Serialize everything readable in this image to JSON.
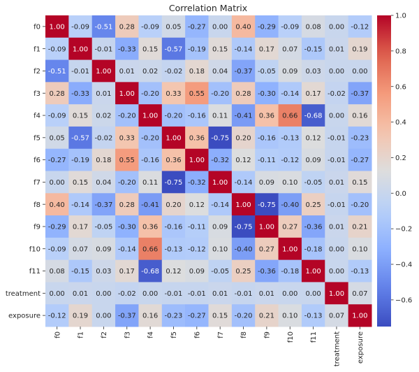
{
  "chart_data": {
    "type": "heatmap",
    "title": "Correlation Matrix",
    "xlabel": "",
    "ylabel": "",
    "labels": [
      "f0",
      "f1",
      "f2",
      "f3",
      "f4",
      "f5",
      "f6",
      "f7",
      "f8",
      "f9",
      "f10",
      "f11",
      "treatment",
      "exposure"
    ],
    "values": [
      [
        1.0,
        -0.09,
        -0.51,
        0.28,
        -0.09,
        0.05,
        -0.27,
        -0.0,
        0.4,
        -0.29,
        -0.09,
        0.08,
        -0.0,
        -0.12
      ],
      [
        -0.09,
        1.0,
        -0.01,
        -0.33,
        0.15,
        -0.57,
        -0.19,
        0.15,
        -0.14,
        0.17,
        0.07,
        -0.15,
        0.01,
        0.19
      ],
      [
        -0.51,
        -0.01,
        1.0,
        0.01,
        0.02,
        -0.02,
        0.18,
        0.04,
        -0.37,
        -0.05,
        0.09,
        0.03,
        -0.0,
        0.0
      ],
      [
        0.28,
        -0.33,
        0.01,
        1.0,
        -0.2,
        0.33,
        0.55,
        -0.2,
        0.28,
        -0.3,
        -0.14,
        0.17,
        -0.02,
        -0.37
      ],
      [
        -0.09,
        0.15,
        0.02,
        -0.2,
        1.0,
        -0.2,
        -0.16,
        0.11,
        -0.41,
        0.36,
        0.66,
        -0.68,
        0.0,
        0.16
      ],
      [
        0.05,
        -0.57,
        -0.02,
        0.33,
        -0.2,
        1.0,
        0.36,
        -0.75,
        0.2,
        -0.16,
        -0.13,
        0.12,
        -0.01,
        -0.23
      ],
      [
        -0.27,
        -0.19,
        0.18,
        0.55,
        -0.16,
        0.36,
        1.0,
        -0.32,
        0.12,
        -0.11,
        -0.12,
        0.09,
        -0.01,
        -0.27
      ],
      [
        -0.0,
        0.15,
        0.04,
        -0.2,
        0.11,
        -0.75,
        -0.32,
        1.0,
        -0.14,
        0.09,
        0.1,
        -0.05,
        0.01,
        0.15
      ],
      [
        0.4,
        -0.14,
        -0.37,
        0.28,
        -0.41,
        0.2,
        0.12,
        -0.14,
        1.0,
        -0.75,
        -0.4,
        0.25,
        -0.01,
        -0.2
      ],
      [
        -0.29,
        0.17,
        -0.05,
        -0.3,
        0.36,
        -0.16,
        -0.11,
        0.09,
        -0.75,
        1.0,
        0.27,
        -0.36,
        0.01,
        0.21
      ],
      [
        -0.09,
        0.07,
        0.09,
        -0.14,
        0.66,
        -0.13,
        -0.12,
        0.1,
        -0.4,
        0.27,
        1.0,
        -0.18,
        0.0,
        0.1
      ],
      [
        0.08,
        -0.15,
        0.03,
        0.17,
        -0.68,
        0.12,
        0.09,
        -0.05,
        0.25,
        -0.36,
        -0.18,
        1.0,
        -0.0,
        -0.13
      ],
      [
        -0.0,
        0.01,
        -0.0,
        -0.02,
        0.0,
        -0.01,
        -0.01,
        0.01,
        -0.01,
        0.01,
        0.0,
        -0.0,
        1.0,
        0.07
      ],
      [
        -0.12,
        0.19,
        0.0,
        -0.37,
        0.16,
        -0.23,
        -0.27,
        0.15,
        -0.2,
        0.21,
        0.1,
        -0.13,
        0.07,
        1.0
      ]
    ],
    "annotation_format": "0.00",
    "colormap": "coolwarm",
    "colorbar": {
      "range": [
        -0.75,
        1.0
      ],
      "ticks": [
        1.0,
        0.8,
        0.6,
        0.4,
        0.2,
        0.0,
        -0.2,
        -0.4,
        -0.6
      ],
      "tick_labels": [
        "1.0",
        "0.8",
        "0.6",
        "0.4",
        "0.2",
        "0.0",
        "−0.2",
        "−0.4",
        "−0.6"
      ],
      "placement": "right"
    },
    "x_tick_rotation": "vertical",
    "grid": false
  }
}
